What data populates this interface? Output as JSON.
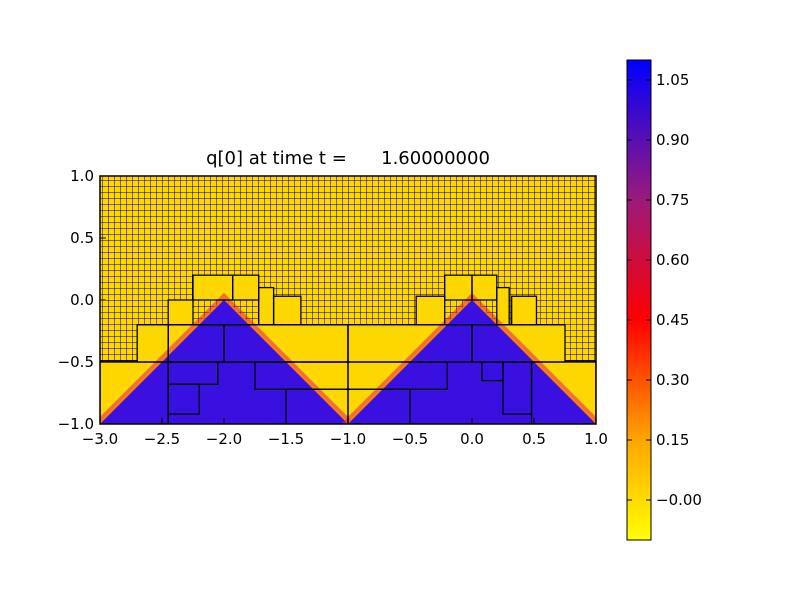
{
  "chart_data": {
    "type": "heatmap",
    "title": "q[0] at time t =      1.60000000",
    "xlabel": "",
    "ylabel": "",
    "xlim": [
      -3.0,
      1.0
    ],
    "ylim": [
      -1.0,
      1.0
    ],
    "xticks": [
      "−3.0",
      "−2.5",
      "−2.0",
      "−1.5",
      "−1.0",
      "−0.5",
      "0.0",
      "0.5",
      "1.0"
    ],
    "xtick_values": [
      -3.0,
      -2.5,
      -2.0,
      -1.5,
      -1.0,
      -0.5,
      0.0,
      0.5,
      1.0
    ],
    "yticks": [
      "−1.0",
      "−0.5",
      "0.0",
      "0.5",
      "1.0"
    ],
    "ytick_values": [
      -1.0,
      -0.5,
      0.0,
      0.5,
      1.0
    ],
    "field": {
      "description_values": "q = 1 inside two triangular wedges (apexes at x=-2.0 and x=0.0, y=0.0, slope |dy/dx|=1), q = 0 elsewhere, smooth edge",
      "background_value": 0.0,
      "wedge_value": 1.0,
      "apex_x": [
        -2.0,
        0.0
      ],
      "apex_y": 0.0,
      "edge_width": 0.08
    },
    "amr_patches": [
      {
        "x": [
          -3.0,
          -2.45
        ],
        "y": [
          -1.0,
          -0.5
        ]
      },
      {
        "x": [
          -2.45,
          -1.0
        ],
        "y": [
          -0.5,
          -0.2
        ]
      },
      {
        "x": [
          -2.7,
          -2.45
        ],
        "y": [
          -0.5,
          -0.2
        ]
      },
      {
        "x": [
          -2.45,
          -2.0
        ],
        "y": [
          -0.5,
          -0.2
        ]
      },
      {
        "x": [
          -2.0,
          -1.0
        ],
        "y": [
          -0.5,
          -0.2
        ]
      },
      {
        "x": [
          -2.45,
          -2.25
        ],
        "y": [
          -0.2,
          0.0
        ]
      },
      {
        "x": [
          -2.25,
          -1.93
        ],
        "y": [
          0.0,
          0.2
        ]
      },
      {
        "x": [
          -1.93,
          -1.72
        ],
        "y": [
          0.0,
          0.2
        ]
      },
      {
        "x": [
          -1.72,
          -1.6
        ],
        "y": [
          -0.2,
          0.1
        ]
      },
      {
        "x": [
          -1.6,
          -1.38
        ],
        "y": [
          -0.2,
          0.03
        ]
      },
      {
        "x": [
          -2.45,
          -2.05
        ],
        "y": [
          -0.68,
          -0.5
        ]
      },
      {
        "x": [
          -2.45,
          -2.2
        ],
        "y": [
          -0.92,
          -0.68
        ]
      },
      {
        "x": [
          -1.75,
          -1.0
        ],
        "y": [
          -0.72,
          -0.5
        ]
      },
      {
        "x": [
          -1.5,
          -1.0
        ],
        "y": [
          -1.0,
          -0.72
        ]
      },
      {
        "x": [
          -1.0,
          -0.5
        ],
        "y": [
          -1.0,
          -0.72
        ]
      },
      {
        "x": [
          -1.0,
          -0.2
        ],
        "y": [
          -0.72,
          -0.5
        ]
      },
      {
        "x": [
          -1.0,
          0.0
        ],
        "y": [
          -0.5,
          -0.2
        ]
      },
      {
        "x": [
          0.0,
          0.75
        ],
        "y": [
          -0.5,
          -0.2
        ]
      },
      {
        "x": [
          -0.45,
          -0.22
        ],
        "y": [
          -0.2,
          0.03
        ]
      },
      {
        "x": [
          -0.22,
          0.0
        ],
        "y": [
          0.0,
          0.2
        ]
      },
      {
        "x": [
          0.0,
          0.2
        ],
        "y": [
          0.0,
          0.2
        ]
      },
      {
        "x": [
          0.2,
          0.3
        ],
        "y": [
          -0.2,
          0.1
        ]
      },
      {
        "x": [
          0.32,
          0.52
        ],
        "y": [
          -0.2,
          0.03
        ]
      },
      {
        "x": [
          0.08,
          0.25
        ],
        "y": [
          -0.65,
          -0.5
        ]
      },
      {
        "x": [
          0.25,
          0.48
        ],
        "y": [
          -0.92,
          -0.5
        ]
      },
      {
        "x": [
          0.48,
          1.0
        ],
        "y": [
          -1.0,
          -0.5
        ]
      }
    ],
    "colorbar": {
      "ticks": [
        "−0.00",
        "0.15",
        "0.30",
        "0.45",
        "0.60",
        "0.75",
        "0.90",
        "1.05"
      ],
      "tick_values": [
        0.0,
        0.15,
        0.3,
        0.45,
        0.6,
        0.75,
        0.9,
        1.05
      ],
      "range": [
        -0.1,
        1.1
      ],
      "colormap_stops": [
        {
          "v": -0.1,
          "color": "#ffff00"
        },
        {
          "v": 0.15,
          "color": "#ffa500"
        },
        {
          "v": 0.45,
          "color": "#ff0000"
        },
        {
          "v": 0.75,
          "color": "#9b1a7a"
        },
        {
          "v": 1.1,
          "color": "#0000ff"
        }
      ]
    },
    "colors": {
      "wedge": "#3a10e0",
      "background": "#ffd700",
      "grid": "#000000"
    }
  }
}
